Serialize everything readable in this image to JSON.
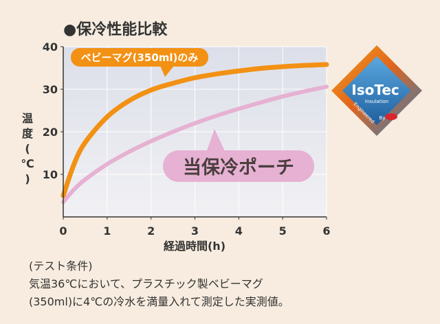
{
  "colors": {
    "mug_series": "#f29114",
    "pouch_series": "#e6b1d2",
    "grid": "#ffffff",
    "plot_bg_top": "#dcdfe9",
    "plot_bg_bottom": "#f1f1f4"
  },
  "chart_data": {
    "type": "line",
    "title": "●保冷性能比較",
    "xlabel": "経過時間(h)",
    "ylabel": "温度(℃)",
    "xlim": [
      0,
      6
    ],
    "ylim": [
      0,
      40
    ],
    "x_ticks": [
      "0",
      "1",
      "2",
      "3",
      "4",
      "5",
      "6"
    ],
    "y_ticks": [
      "10",
      "20",
      "30",
      "40"
    ],
    "grid": true,
    "series": [
      {
        "name": "ベビーマグ(350ml)のみ",
        "x": [
          0,
          0.25,
          0.5,
          1,
          1.5,
          2,
          2.5,
          3,
          3.5,
          4,
          4.5,
          5,
          5.5,
          6
        ],
        "y": [
          5,
          12.5,
          17.5,
          23.5,
          27.3,
          29.8,
          31.4,
          32.7,
          33.6,
          34.3,
          34.9,
          35.3,
          35.6,
          35.8
        ]
      },
      {
        "name": "当保冷ポーチ",
        "x": [
          0,
          0.25,
          0.5,
          1,
          1.5,
          2,
          2.5,
          3,
          3.5,
          4,
          4.5,
          5,
          5.5,
          6
        ],
        "y": [
          3.5,
          6.5,
          8.8,
          12.4,
          15.3,
          17.8,
          20.0,
          22.0,
          23.8,
          25.4,
          26.9,
          28.3,
          29.5,
          30.6
        ]
      }
    ]
  },
  "badge": {
    "brand": "IsoTec",
    "sub": "Insulation",
    "engineered": "Engineered",
    "by": "By"
  },
  "notes": {
    "line1": "(テスト条件)",
    "line2": "気温36℃において、プラスチック製ベビーマグ",
    "line3": "(350ml)に4℃の冷水を満量入れて測定した実測値。"
  }
}
